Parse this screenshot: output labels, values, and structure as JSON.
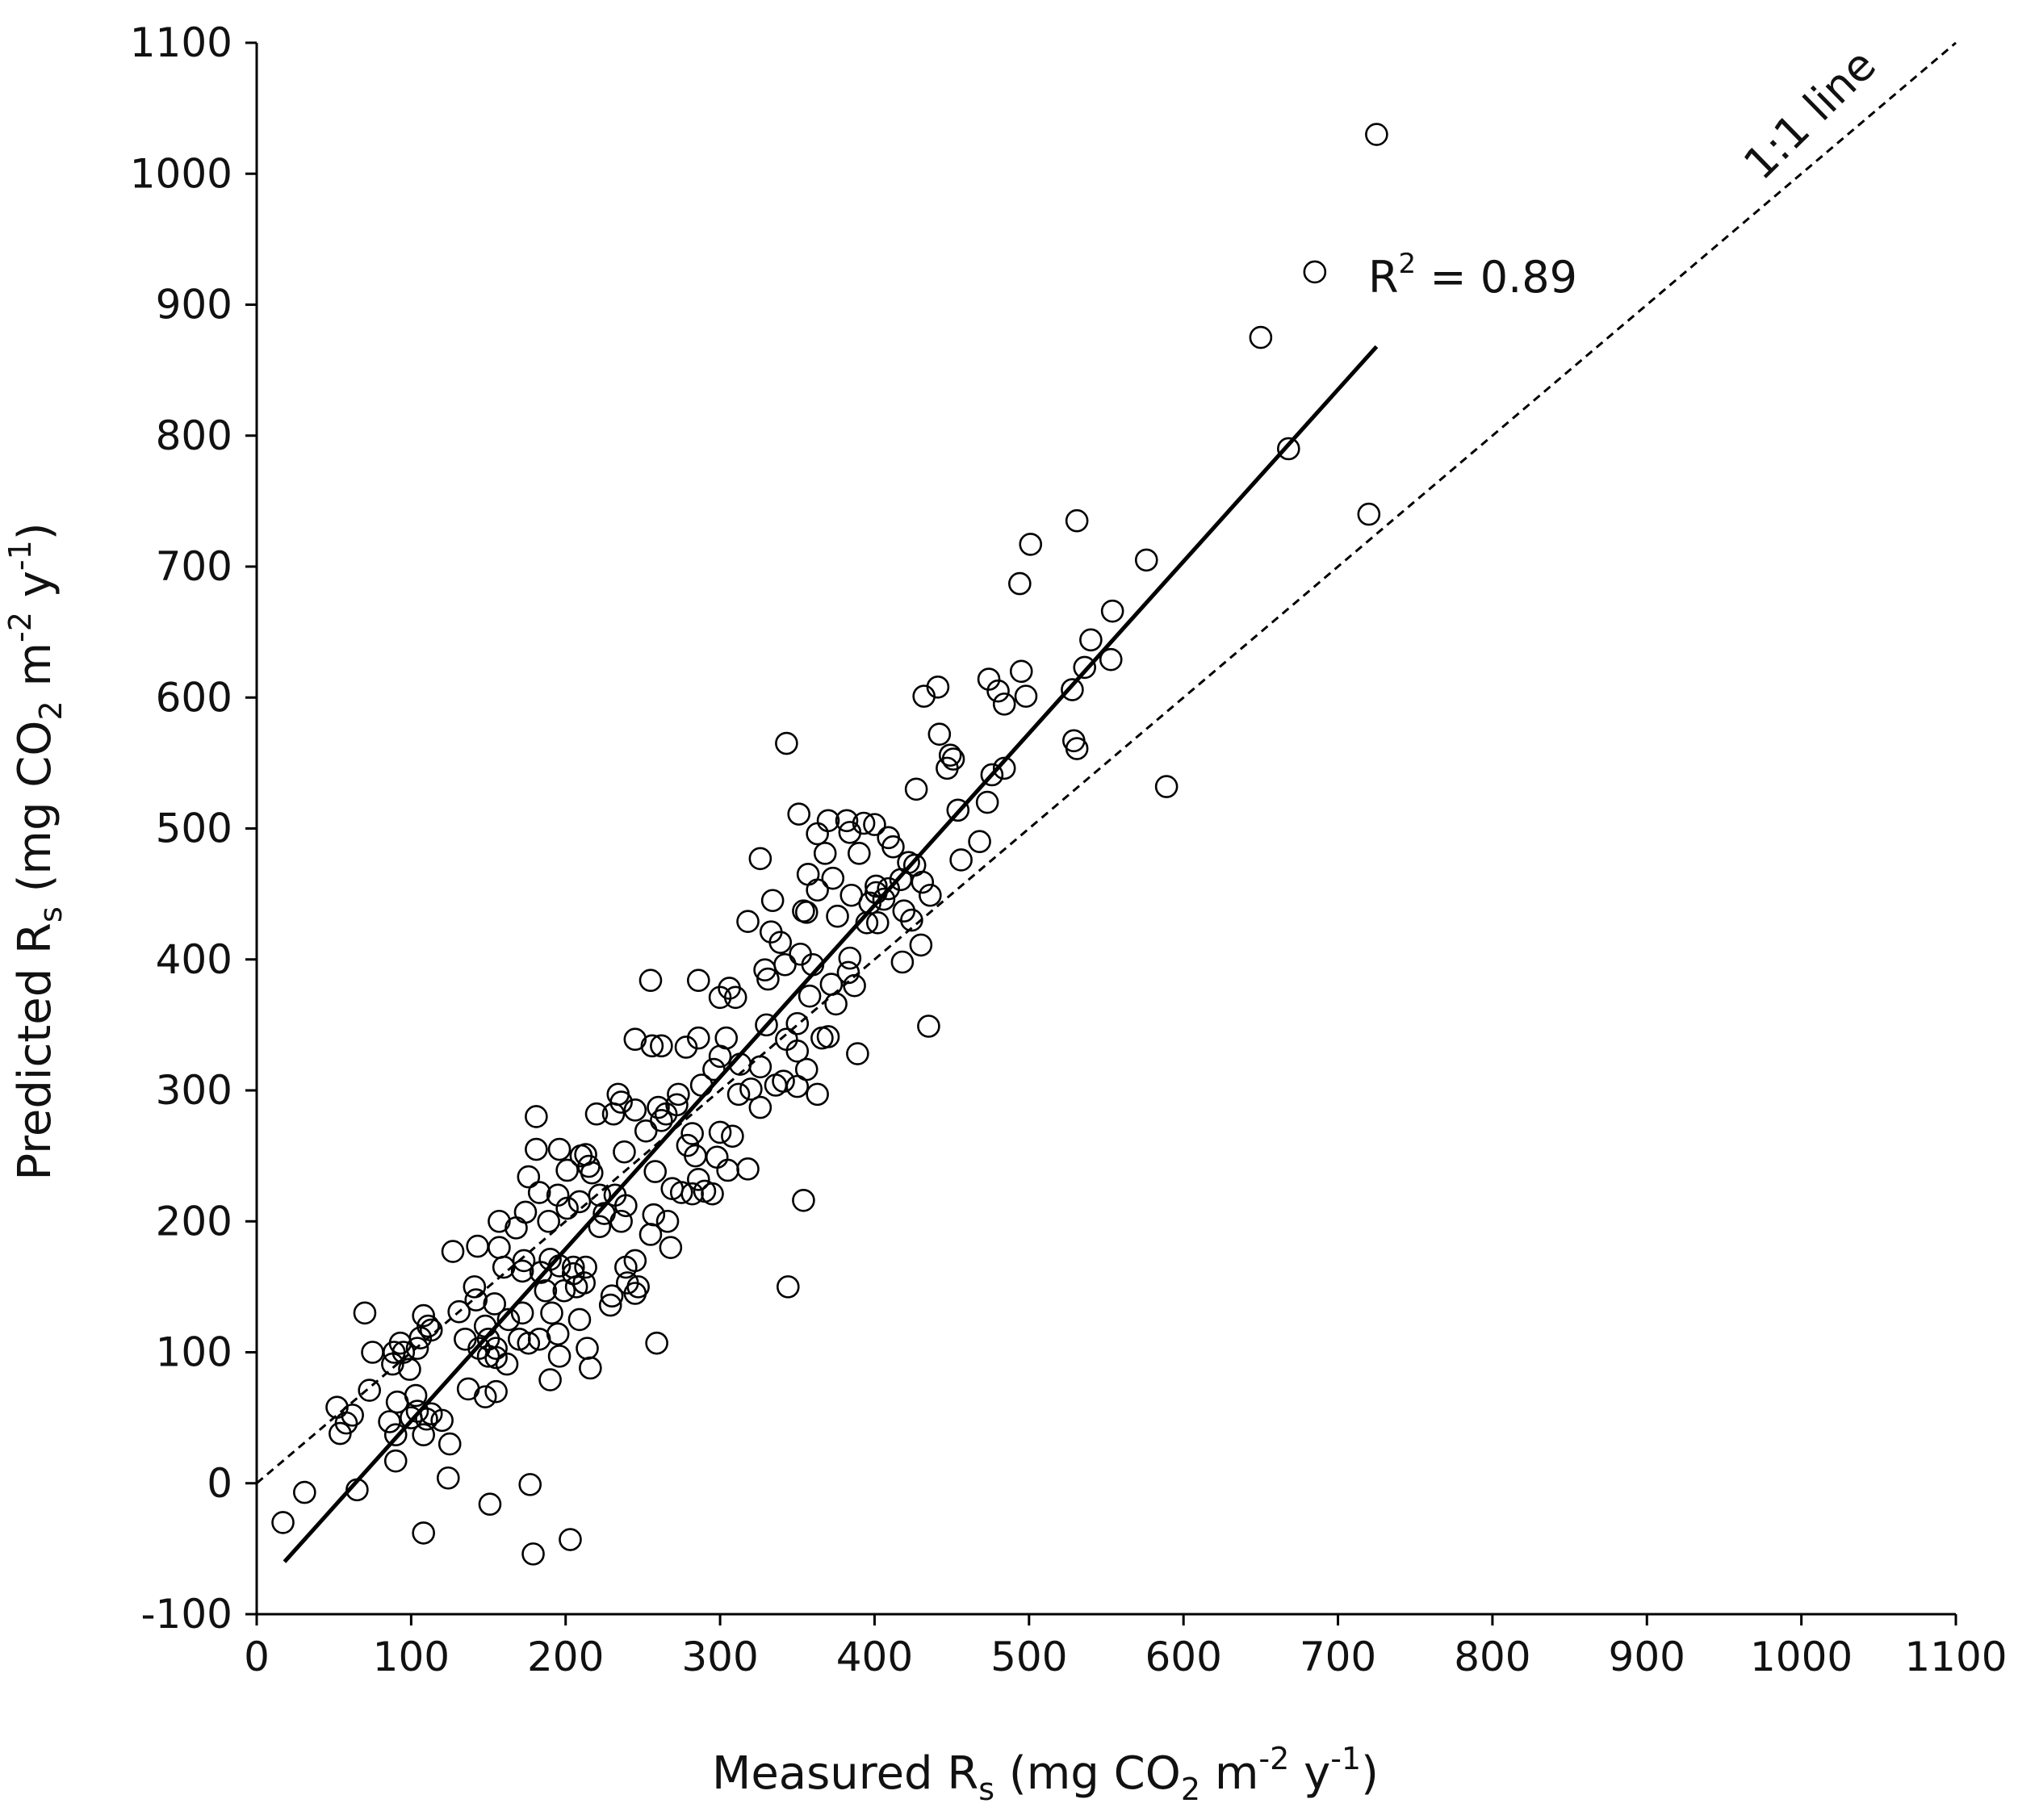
{
  "chart_data": {
    "type": "scatter",
    "title": "",
    "xlabel": {
      "main": "Measured R",
      "sub": "s",
      "unit_open": " (mg CO",
      "unit_sub": "2",
      "unit_mid": " m",
      "unit_sup1": "-2",
      "unit_mid2": " y",
      "unit_sup2": "-1",
      "unit_close": ")"
    },
    "ylabel": {
      "main": "Predicted R",
      "sub": "s",
      "unit_open": " (mg CO",
      "unit_sub": "2",
      "unit_mid": " m",
      "unit_sup1": "-2",
      "unit_mid2": " y",
      "unit_sup2": "-1",
      "unit_close": ")"
    },
    "xlim": [
      0,
      1100
    ],
    "ylim": [
      -100,
      1100
    ],
    "xticks": [
      "0",
      "100",
      "200",
      "300",
      "400",
      "500",
      "600",
      "700",
      "800",
      "900",
      "1000",
      "1100"
    ],
    "yticks": [
      "-100",
      "0",
      "100",
      "200",
      "300",
      "400",
      "500",
      "600",
      "700",
      "800",
      "900",
      "1000",
      "1100"
    ],
    "grid": false,
    "annotations": {
      "r2_label": "R",
      "r2_sup": "2",
      "r2_value": " = 0.89",
      "one_to_one_label": "1:1 line"
    },
    "regression_line": {
      "x": [
        18,
        725
      ],
      "y": [
        -60,
        868
      ]
    },
    "one_to_one_line": {
      "x": [
        0,
        1100
      ],
      "y": [
        0,
        1100
      ]
    },
    "points": [
      [
        725,
        1030
      ],
      [
        685,
        925
      ],
      [
        650,
        875
      ],
      [
        668,
        790
      ],
      [
        720,
        740
      ],
      [
        531,
        735
      ],
      [
        501,
        717
      ],
      [
        576,
        705
      ],
      [
        494,
        687
      ],
      [
        554,
        666
      ],
      [
        540,
        644
      ],
      [
        536,
        623
      ],
      [
        553,
        629
      ],
      [
        495,
        620
      ],
      [
        528,
        606
      ],
      [
        474,
        614
      ],
      [
        480,
        605
      ],
      [
        498,
        601
      ],
      [
        432,
        601
      ],
      [
        441,
        608
      ],
      [
        484,
        595
      ],
      [
        442,
        572
      ],
      [
        529,
        567
      ],
      [
        531,
        561
      ],
      [
        343,
        565
      ],
      [
        449,
        556
      ],
      [
        451,
        553
      ],
      [
        447,
        546
      ],
      [
        476,
        541
      ],
      [
        484,
        546
      ],
      [
        589,
        532
      ],
      [
        427,
        530
      ],
      [
        473,
        520
      ],
      [
        454,
        514
      ],
      [
        468,
        490
      ],
      [
        456,
        476
      ],
      [
        351,
        511
      ],
      [
        370,
        506
      ],
      [
        382,
        506
      ],
      [
        393,
        504
      ],
      [
        400,
        503
      ],
      [
        409,
        493
      ],
      [
        412,
        486
      ],
      [
        384,
        497
      ],
      [
        363,
        496
      ],
      [
        326,
        477
      ],
      [
        390,
        481
      ],
      [
        368,
        481
      ],
      [
        357,
        465
      ],
      [
        373,
        462
      ],
      [
        363,
        453
      ],
      [
        385,
        449
      ],
      [
        401,
        456
      ],
      [
        422,
        474
      ],
      [
        426,
        472
      ],
      [
        417,
        461
      ],
      [
        409,
        454
      ],
      [
        401,
        451
      ],
      [
        431,
        459
      ],
      [
        436,
        449
      ],
      [
        397,
        443
      ],
      [
        406,
        446
      ],
      [
        419,
        437
      ],
      [
        424,
        430
      ],
      [
        395,
        428
      ],
      [
        402,
        428
      ],
      [
        376,
        433
      ],
      [
        356,
        436
      ],
      [
        334,
        445
      ],
      [
        354,
        437
      ],
      [
        318,
        429
      ],
      [
        333,
        421
      ],
      [
        339,
        413
      ],
      [
        352,
        404
      ],
      [
        329,
        392
      ],
      [
        342,
        396
      ],
      [
        331,
        385
      ],
      [
        360,
        396
      ],
      [
        383,
        390
      ],
      [
        372,
        381
      ],
      [
        387,
        380
      ],
      [
        375,
        366
      ],
      [
        286,
        384
      ],
      [
        255,
        384
      ],
      [
        306,
        378
      ],
      [
        310,
        371
      ],
      [
        300,
        371
      ],
      [
        358,
        372
      ],
      [
        384,
        401
      ],
      [
        430,
        411
      ],
      [
        418,
        398
      ],
      [
        435,
        349
      ],
      [
        330,
        350
      ],
      [
        350,
        351
      ],
      [
        343,
        339
      ],
      [
        366,
        340
      ],
      [
        370,
        341
      ],
      [
        304,
        340
      ],
      [
        286,
        340
      ],
      [
        245,
        339
      ],
      [
        256,
        334
      ],
      [
        262,
        334
      ],
      [
        278,
        333
      ],
      [
        300,
        326
      ],
      [
        313,
        320
      ],
      [
        350,
        330
      ],
      [
        356,
        316
      ],
      [
        389,
        328
      ],
      [
        326,
        318
      ],
      [
        320,
        301
      ],
      [
        341,
        307
      ],
      [
        296,
        316
      ],
      [
        312,
        297
      ],
      [
        288,
        304
      ],
      [
        336,
        304
      ],
      [
        350,
        303
      ],
      [
        363,
        297
      ],
      [
        326,
        287
      ],
      [
        273,
        297
      ],
      [
        272,
        289
      ],
      [
        260,
        287
      ],
      [
        245,
        285
      ],
      [
        236,
        291
      ],
      [
        234,
        297
      ],
      [
        220,
        282
      ],
      [
        231,
        282
      ],
      [
        265,
        282
      ],
      [
        262,
        277
      ],
      [
        252,
        269
      ],
      [
        282,
        267
      ],
      [
        300,
        268
      ],
      [
        308,
        265
      ],
      [
        279,
        258
      ],
      [
        284,
        250
      ],
      [
        298,
        249
      ],
      [
        305,
        239
      ],
      [
        318,
        240
      ],
      [
        286,
        232
      ],
      [
        290,
        223
      ],
      [
        282,
        221
      ],
      [
        295,
        221
      ],
      [
        275,
        222
      ],
      [
        269,
        225
      ],
      [
        258,
        238
      ],
      [
        238,
        253
      ],
      [
        213,
        251
      ],
      [
        215,
        242
      ],
      [
        217,
        237
      ],
      [
        232,
        220
      ],
      [
        222,
        220
      ],
      [
        225,
        206
      ],
      [
        222,
        196
      ],
      [
        236,
        200
      ],
      [
        239,
        212
      ],
      [
        257,
        205
      ],
      [
        266,
        200
      ],
      [
        255,
        190
      ],
      [
        268,
        180
      ],
      [
        245,
        170
      ],
      [
        239,
        165
      ],
      [
        240,
        153
      ],
      [
        247,
        150
      ],
      [
        245,
        145
      ],
      [
        230,
        143
      ],
      [
        229,
        136
      ],
      [
        259,
        107
      ],
      [
        181,
        280
      ],
      [
        181,
        255
      ],
      [
        196,
        255
      ],
      [
        210,
        250
      ],
      [
        201,
        239
      ],
      [
        176,
        234
      ],
      [
        183,
        222
      ],
      [
        195,
        220
      ],
      [
        201,
        210
      ],
      [
        209,
        215
      ],
      [
        174,
        207
      ],
      [
        189,
        200
      ],
      [
        168,
        195
      ],
      [
        157,
        200
      ],
      [
        157,
        180
      ],
      [
        173,
        170
      ],
      [
        160,
        165
      ],
      [
        172,
        162
      ],
      [
        184,
        161
      ],
      [
        190,
        171
      ],
      [
        196,
        166
      ],
      [
        205,
        165
      ],
      [
        205,
        160
      ],
      [
        213,
        165
      ],
      [
        212,
        153
      ],
      [
        199,
        147
      ],
      [
        207,
        150
      ],
      [
        187,
        147
      ],
      [
        191,
        130
      ],
      [
        172,
        130
      ],
      [
        163,
        125
      ],
      [
        154,
        137
      ],
      [
        142,
        140
      ],
      [
        148,
        120
      ],
      [
        131,
        131
      ],
      [
        135,
        110
      ],
      [
        144,
        103
      ],
      [
        150,
        110
      ],
      [
        155,
        103
      ],
      [
        170,
        110
      ],
      [
        176,
        107
      ],
      [
        183,
        110
      ],
      [
        195,
        114
      ],
      [
        209,
        125
      ],
      [
        214,
        103
      ],
      [
        216,
        88
      ],
      [
        196,
        97
      ],
      [
        190,
        79
      ],
      [
        162,
        91
      ],
      [
        155,
        96
      ],
      [
        150,
        97
      ],
      [
        155,
        70
      ],
      [
        137,
        72
      ],
      [
        148,
        66
      ],
      [
        127,
        177
      ],
      [
        143,
        181
      ],
      [
        141,
        150
      ],
      [
        108,
        128
      ],
      [
        111,
        120
      ],
      [
        113,
        117
      ],
      [
        106,
        111
      ],
      [
        104,
        103
      ],
      [
        95,
        100
      ],
      [
        89,
        100
      ],
      [
        70,
        130
      ],
      [
        75,
        100
      ],
      [
        88,
        91
      ],
      [
        93,
        107
      ],
      [
        99,
        87
      ],
      [
        91,
        62
      ],
      [
        103,
        67
      ],
      [
        73,
        71
      ],
      [
        86,
        47
      ],
      [
        100,
        50
      ],
      [
        104,
        55
      ],
      [
        110,
        49
      ],
      [
        120,
        48
      ],
      [
        113,
        53
      ],
      [
        125,
        30
      ],
      [
        108,
        37
      ],
      [
        90,
        37
      ],
      [
        90,
        17
      ],
      [
        62,
        52
      ],
      [
        58,
        46
      ],
      [
        52,
        58
      ],
      [
        54,
        38
      ],
      [
        65,
        -5
      ],
      [
        31,
        -7
      ],
      [
        17,
        -30
      ],
      [
        124,
        4
      ],
      [
        151,
        -16
      ],
      [
        177,
        -1
      ],
      [
        179,
        -54
      ],
      [
        203,
        -43
      ],
      [
        108,
        -38
      ],
      [
        344,
        150
      ],
      [
        354,
        216
      ]
    ]
  }
}
